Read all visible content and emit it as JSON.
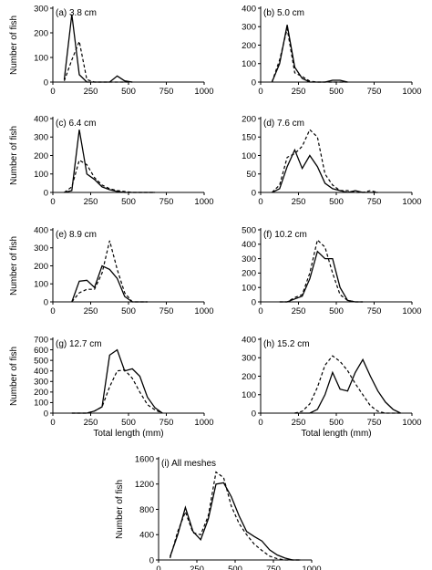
{
  "figure": {
    "y_axis_label": "Number of fish",
    "x_axis_label": "Total length (mm)"
  },
  "chart_data": [
    {
      "type": "line",
      "title": "(a) 3.8 cm",
      "x": [
        75,
        125,
        175,
        225,
        275,
        325,
        375,
        425,
        475,
        525
      ],
      "xlim": [
        0,
        1000
      ],
      "ylim": [
        0,
        300
      ],
      "xticks": [
        "0",
        "250",
        "500",
        "750",
        "1000"
      ],
      "yticks": [
        "0",
        "100",
        "200",
        "300"
      ],
      "ylabel": "Number of fish",
      "xlabel": "",
      "series": [
        {
          "style": "solid",
          "values": [
            10,
            275,
            30,
            0,
            0,
            0,
            0,
            25,
            5,
            0
          ]
        },
        {
          "style": "dashed",
          "values": [
            5,
            90,
            165,
            10,
            0,
            0,
            0,
            0,
            0,
            0
          ]
        }
      ]
    },
    {
      "type": "line",
      "title": "(b) 5.0 cm",
      "x": [
        75,
        125,
        175,
        225,
        275,
        325,
        375,
        425,
        475,
        525,
        575
      ],
      "xlim": [
        0,
        1000
      ],
      "ylim": [
        0,
        400
      ],
      "xticks": [
        "0",
        "250",
        "500",
        "750",
        "1000"
      ],
      "yticks": [
        "0",
        "100",
        "200",
        "300",
        "400"
      ],
      "ylabel": "",
      "xlabel": "",
      "series": [
        {
          "style": "solid",
          "values": [
            0,
            100,
            310,
            80,
            20,
            0,
            0,
            0,
            10,
            10,
            0
          ]
        },
        {
          "style": "dashed",
          "values": [
            0,
            120,
            290,
            50,
            30,
            5,
            0,
            0,
            0,
            0,
            0
          ]
        }
      ]
    },
    {
      "type": "line",
      "title": "(c) 6.4 cm",
      "x": [
        75,
        125,
        175,
        225,
        275,
        325,
        375,
        425,
        475,
        525,
        575,
        625,
        675
      ],
      "xlim": [
        0,
        1000
      ],
      "ylim": [
        0,
        400
      ],
      "xticks": [
        "0",
        "250",
        "500",
        "750",
        "1000"
      ],
      "yticks": [
        "0",
        "100",
        "200",
        "300",
        "400"
      ],
      "ylabel": "Number of fish",
      "xlabel": "",
      "series": [
        {
          "style": "solid",
          "values": [
            0,
            10,
            340,
            100,
            70,
            30,
            15,
            5,
            0,
            0,
            0,
            0,
            0
          ]
        },
        {
          "style": "dashed",
          "values": [
            0,
            30,
            175,
            150,
            80,
            40,
            20,
            10,
            5,
            0,
            0,
            0,
            0
          ]
        }
      ]
    },
    {
      "type": "line",
      "title": "(d) 7.6 cm",
      "x": [
        75,
        125,
        175,
        225,
        275,
        325,
        375,
        425,
        475,
        525,
        575,
        625,
        675,
        725,
        775
      ],
      "xlim": [
        0,
        1000
      ],
      "ylim": [
        0,
        200
      ],
      "xticks": [
        "0",
        "250",
        "500",
        "750",
        "1000"
      ],
      "yticks": [
        "0",
        "50",
        "100",
        "150",
        "200"
      ],
      "ylabel": "",
      "xlabel": "",
      "series": [
        {
          "style": "solid",
          "values": [
            0,
            10,
            70,
            115,
            65,
            100,
            70,
            25,
            10,
            5,
            0,
            5,
            0,
            0,
            0
          ]
        },
        {
          "style": "dashed",
          "values": [
            0,
            20,
            95,
            105,
            125,
            170,
            150,
            50,
            20,
            5,
            5,
            0,
            0,
            5,
            0
          ]
        }
      ]
    },
    {
      "type": "line",
      "title": "(e) 8.9 cm",
      "x": [
        125,
        175,
        225,
        275,
        325,
        375,
        425,
        475,
        525,
        575,
        625
      ],
      "xlim": [
        0,
        1000
      ],
      "ylim": [
        0,
        400
      ],
      "xticks": [
        "0",
        "250",
        "500",
        "750",
        "1000"
      ],
      "yticks": [
        "0",
        "100",
        "200",
        "300",
        "400"
      ],
      "ylabel": "Number of fish",
      "xlabel": "",
      "series": [
        {
          "style": "solid",
          "values": [
            0,
            115,
            120,
            80,
            200,
            180,
            130,
            30,
            0,
            0,
            0
          ]
        },
        {
          "style": "dashed",
          "values": [
            0,
            50,
            70,
            70,
            160,
            340,
            180,
            50,
            0,
            0,
            0
          ]
        }
      ]
    },
    {
      "type": "line",
      "title": "(f) 10.2 cm",
      "x": [
        125,
        175,
        225,
        275,
        325,
        375,
        425,
        475,
        525,
        575,
        625,
        675
      ],
      "xlim": [
        0,
        1000
      ],
      "ylim": [
        0,
        500
      ],
      "xticks": [
        "0",
        "250",
        "500",
        "750",
        "1000"
      ],
      "yticks": [
        "0",
        "100",
        "200",
        "300",
        "400",
        "500"
      ],
      "ylabel": "",
      "xlabel": "",
      "series": [
        {
          "style": "solid",
          "values": [
            0,
            0,
            20,
            40,
            160,
            350,
            300,
            300,
            100,
            10,
            0,
            0
          ]
        },
        {
          "style": "dashed",
          "values": [
            0,
            0,
            30,
            50,
            200,
            430,
            380,
            200,
            50,
            10,
            0,
            0
          ]
        }
      ]
    },
    {
      "type": "line",
      "title": "(g) 12.7 cm",
      "x": [
        125,
        175,
        225,
        275,
        325,
        375,
        425,
        475,
        525,
        575,
        625,
        675,
        725
      ],
      "xlim": [
        0,
        1000
      ],
      "ylim": [
        0,
        700
      ],
      "xticks": [
        "0",
        "250",
        "500",
        "750",
        "1000"
      ],
      "yticks": [
        "0",
        "100",
        "200",
        "300",
        "400",
        "500",
        "600",
        "700"
      ],
      "ylabel": "Number of fish",
      "xlabel": "Total length (mm)",
      "series": [
        {
          "style": "solid",
          "values": [
            0,
            0,
            0,
            20,
            60,
            550,
            600,
            400,
            420,
            350,
            150,
            50,
            0
          ]
        },
        {
          "style": "dashed",
          "values": [
            0,
            0,
            0,
            20,
            60,
            250,
            400,
            410,
            330,
            200,
            80,
            30,
            0
          ]
        }
      ]
    },
    {
      "type": "line",
      "title": "(h) 15.2 cm",
      "x": [
        225,
        275,
        325,
        375,
        425,
        475,
        525,
        575,
        625,
        675,
        725,
        775,
        825,
        875,
        925
      ],
      "xlim": [
        0,
        1000
      ],
      "ylim": [
        0,
        400
      ],
      "xticks": [
        "0",
        "250",
        "500",
        "750",
        "1000"
      ],
      "yticks": [
        "0",
        "100",
        "200",
        "300",
        "400"
      ],
      "ylabel": "",
      "xlabel": "Total length (mm)",
      "series": [
        {
          "style": "solid",
          "values": [
            0,
            0,
            0,
            20,
            100,
            220,
            130,
            120,
            220,
            290,
            200,
            120,
            60,
            20,
            0
          ]
        },
        {
          "style": "dashed",
          "values": [
            0,
            10,
            50,
            140,
            260,
            310,
            280,
            230,
            160,
            100,
            40,
            10,
            0,
            0,
            0
          ]
        }
      ]
    },
    {
      "type": "line",
      "title": "(i) All meshes",
      "x": [
        75,
        125,
        175,
        225,
        275,
        325,
        375,
        425,
        475,
        525,
        575,
        625,
        675,
        725,
        775,
        825,
        875,
        925
      ],
      "xlim": [
        0,
        1000
      ],
      "ylim": [
        0,
        1600
      ],
      "xticks": [
        "0",
        "250",
        "500",
        "750",
        "1000"
      ],
      "yticks": [
        "0",
        "400",
        "800",
        "1200",
        "1600"
      ],
      "ylabel": "Number of fish",
      "xlabel": "Total length (mm)",
      "series": [
        {
          "style": "solid",
          "values": [
            50,
            400,
            830,
            450,
            320,
            650,
            1200,
            1220,
            1000,
            700,
            450,
            370,
            300,
            160,
            80,
            30,
            0,
            0
          ]
        },
        {
          "style": "dashed",
          "values": [
            30,
            450,
            760,
            430,
            400,
            700,
            1390,
            1300,
            850,
            580,
            400,
            250,
            150,
            60,
            20,
            0,
            0,
            0
          ]
        }
      ]
    }
  ]
}
